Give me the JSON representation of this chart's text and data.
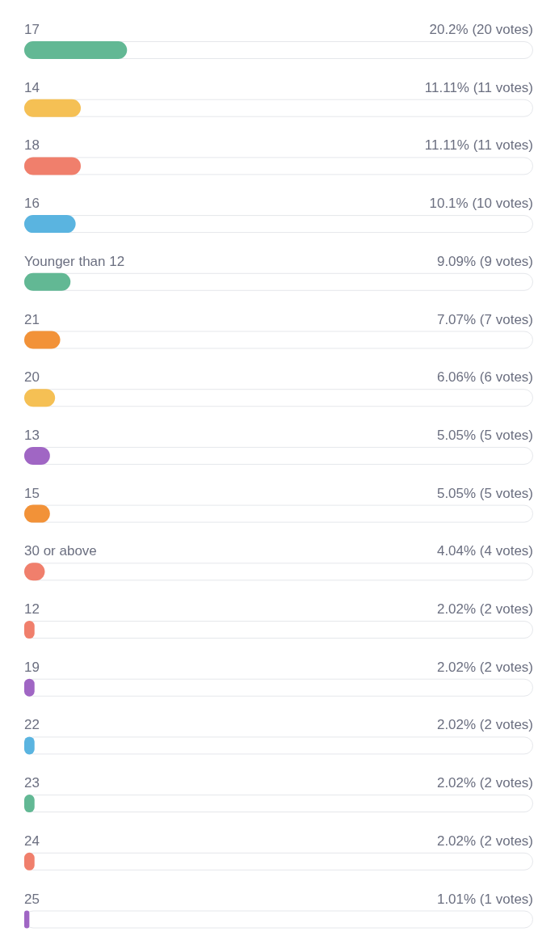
{
  "chart_data": {
    "type": "bar",
    "orientation": "horizontal",
    "categories": [
      "17",
      "14",
      "18",
      "16",
      "Younger than 12",
      "21",
      "20",
      "13",
      "15",
      "30 or above",
      "12",
      "19",
      "22",
      "23",
      "24",
      "25"
    ],
    "values": [
      20.2,
      11.11,
      11.11,
      10.1,
      9.09,
      7.07,
      6.06,
      5.05,
      5.05,
      4.04,
      2.02,
      2.02,
      2.02,
      2.02,
      2.02,
      1.01
    ],
    "value_labels": [
      "20.2% (20 votes)",
      "11.11% (11 votes)",
      "11.11% (11 votes)",
      "10.1% (10 votes)",
      "9.09% (9 votes)",
      "7.07% (7 votes)",
      "6.06% (6 votes)",
      "5.05% (5 votes)",
      "5.05% (5 votes)",
      "4.04% (4 votes)",
      "2.02% (2 votes)",
      "2.02% (2 votes)",
      "2.02% (2 votes)",
      "2.02% (2 votes)",
      "2.02% (2 votes)",
      "1.01% (1 votes)"
    ],
    "colors": [
      "#62b894",
      "#f5c054",
      "#f07f6c",
      "#5ab4e0",
      "#62b894",
      "#f29238",
      "#f5c054",
      "#a066c4",
      "#f29238",
      "#f07f6c",
      "#f07f6c",
      "#a066c4",
      "#5ab4e0",
      "#62b894",
      "#f07f6c",
      "#a066c4"
    ],
    "xlim": [
      0,
      100
    ]
  }
}
